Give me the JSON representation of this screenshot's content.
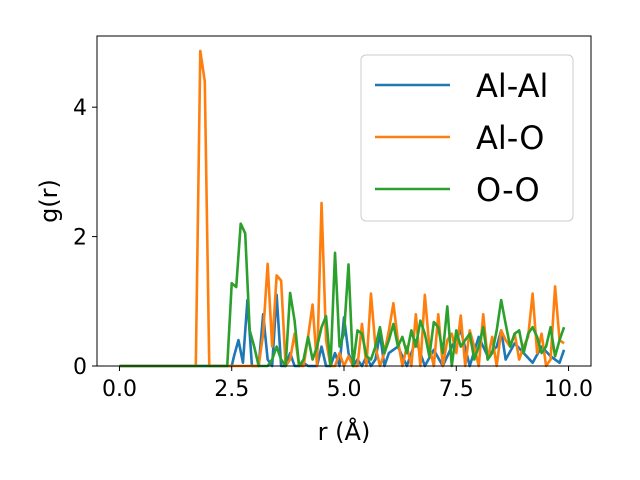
{
  "chart_data": {
    "type": "line",
    "xlabel": "r (Å)",
    "ylabel": "g(r)",
    "xlim": [
      -0.5,
      10.5
    ],
    "ylim": [
      0,
      5.1
    ],
    "x_ticks": [
      0.0,
      2.5,
      5.0,
      7.5,
      10.0
    ],
    "x_tick_labels": [
      "0.0",
      "2.5",
      "5.0",
      "7.5",
      "10.0"
    ],
    "y_ticks": [
      0,
      2,
      4
    ],
    "y_tick_labels": [
      "0",
      "2",
      "4"
    ],
    "grid": false,
    "legend_position": "top-right",
    "series": [
      {
        "name": "Al-Al",
        "color": "#1f77b4",
        "x": [
          0.0,
          0.5,
          1.0,
          1.5,
          2.0,
          2.5,
          2.55,
          2.65,
          2.75,
          2.85,
          2.95,
          3.1,
          3.2,
          3.3,
          3.4,
          3.5,
          3.6,
          3.7,
          3.8,
          3.9,
          4.0,
          4.1,
          4.2,
          4.3,
          4.4,
          4.5,
          4.6,
          4.7,
          4.8,
          4.9,
          5.0,
          5.1,
          5.2,
          5.3,
          5.4,
          5.5,
          5.6,
          5.7,
          5.8,
          5.9,
          6.0,
          6.2,
          6.4,
          6.6,
          6.8,
          7.0,
          7.2,
          7.4,
          7.6,
          7.8,
          8.0,
          8.2,
          8.4,
          8.5,
          8.6,
          8.8,
          9.0,
          9.2,
          9.4,
          9.6,
          9.8,
          9.9
        ],
        "values": [
          0,
          0,
          0,
          0,
          0,
          0,
          0.15,
          0.4,
          0.05,
          1.02,
          0,
          0,
          0.8,
          0.1,
          0,
          1.1,
          0,
          0,
          0.2,
          0,
          0,
          0.05,
          0,
          0,
          0,
          0.3,
          0,
          0,
          0.2,
          0,
          0.75,
          0.2,
          0,
          0.1,
          0,
          0.15,
          0,
          0.1,
          0.5,
          0,
          0.2,
          0.3,
          0,
          0.4,
          0,
          0.25,
          0,
          0.3,
          0.55,
          0,
          0.45,
          0.15,
          0.3,
          0.55,
          0.1,
          0.35,
          0.2,
          0.05,
          0.3,
          0.15,
          0.05,
          0.25
        ]
      },
      {
        "name": "Al-O",
        "color": "#ff7f0e",
        "x": [
          0.0,
          0.5,
          1.0,
          1.5,
          1.7,
          1.8,
          1.9,
          2.0,
          2.5,
          3.0,
          3.1,
          3.2,
          3.3,
          3.4,
          3.5,
          3.6,
          3.7,
          3.8,
          3.9,
          4.0,
          4.1,
          4.2,
          4.3,
          4.4,
          4.5,
          4.6,
          4.7,
          4.8,
          4.9,
          5.0,
          5.1,
          5.2,
          5.3,
          5.4,
          5.5,
          5.6,
          5.7,
          5.8,
          5.9,
          6.0,
          6.1,
          6.2,
          6.3,
          6.4,
          6.5,
          6.6,
          6.7,
          6.8,
          6.9,
          7.0,
          7.1,
          7.2,
          7.3,
          7.4,
          7.5,
          7.6,
          7.7,
          7.8,
          7.9,
          8.0,
          8.1,
          8.2,
          8.3,
          8.4,
          8.5,
          8.6,
          8.7,
          8.8,
          8.9,
          9.0,
          9.1,
          9.2,
          9.3,
          9.4,
          9.5,
          9.6,
          9.7,
          9.8,
          9.9
        ],
        "values": [
          0,
          0,
          0,
          0,
          0,
          4.87,
          4.4,
          0,
          0,
          0,
          0,
          0.5,
          1.58,
          0.3,
          1.4,
          1.32,
          0,
          0.1,
          0.5,
          0,
          0,
          0.45,
          0.95,
          0,
          2.52,
          0.4,
          0,
          0,
          0.2,
          0,
          0.15,
          0,
          0,
          0.65,
          0,
          1.12,
          0.3,
          0,
          0.2,
          0.55,
          0.97,
          0.4,
          0,
          0.3,
          0,
          0.8,
          0,
          1.1,
          0.3,
          0,
          0.8,
          0,
          0.4,
          0.5,
          0.2,
          0.78,
          0,
          0.55,
          0.3,
          0,
          0.8,
          0.1,
          0.45,
          0,
          0.55,
          0.4,
          0.3,
          0.5,
          0.1,
          0.3,
          0.45,
          1.12,
          0.2,
          0.5,
          0,
          0.1,
          1.23,
          0.4,
          0.35
        ]
      },
      {
        "name": "O-O",
        "color": "#2ca02c",
        "x": [
          0.0,
          0.5,
          1.0,
          1.5,
          2.0,
          2.4,
          2.5,
          2.6,
          2.7,
          2.8,
          2.9,
          3.0,
          3.1,
          3.2,
          3.3,
          3.4,
          3.5,
          3.6,
          3.7,
          3.8,
          3.9,
          4.0,
          4.1,
          4.2,
          4.3,
          4.4,
          4.5,
          4.6,
          4.7,
          4.8,
          4.9,
          5.0,
          5.1,
          5.2,
          5.3,
          5.4,
          5.5,
          5.6,
          5.7,
          5.8,
          5.9,
          6.0,
          6.1,
          6.2,
          6.3,
          6.4,
          6.5,
          6.6,
          6.7,
          6.8,
          6.9,
          7.0,
          7.1,
          7.2,
          7.3,
          7.4,
          7.5,
          7.6,
          7.7,
          7.8,
          7.9,
          8.0,
          8.1,
          8.2,
          8.3,
          8.4,
          8.5,
          8.6,
          8.7,
          8.8,
          8.9,
          9.0,
          9.1,
          9.2,
          9.3,
          9.4,
          9.5,
          9.6,
          9.7,
          9.8,
          9.9
        ],
        "values": [
          0,
          0,
          0,
          0,
          0,
          0,
          1.28,
          1.22,
          2.2,
          2.05,
          0.55,
          0.3,
          0,
          0,
          0,
          0.1,
          0.3,
          0.1,
          0,
          1.13,
          0.7,
          0,
          0.1,
          0.45,
          0.1,
          0.3,
          0.6,
          0.77,
          0,
          1.75,
          0.3,
          0.5,
          1.57,
          0,
          0.55,
          0.5,
          0.15,
          0.1,
          0.3,
          0.6,
          0.2,
          0.4,
          0.65,
          0.3,
          0.45,
          0.2,
          0.55,
          0.3,
          0.7,
          0.5,
          0.15,
          0.68,
          0.6,
          0.2,
          0.92,
          0,
          0.55,
          0.3,
          0.4,
          0.5,
          0.1,
          0.3,
          0.6,
          0.1,
          0.2,
          0.55,
          1.02,
          0.65,
          0.3,
          0.5,
          0.55,
          0.2,
          0.5,
          0.6,
          0.45,
          0.2,
          0.3,
          0.6,
          0.15,
          0.4,
          0.6
        ]
      }
    ]
  }
}
